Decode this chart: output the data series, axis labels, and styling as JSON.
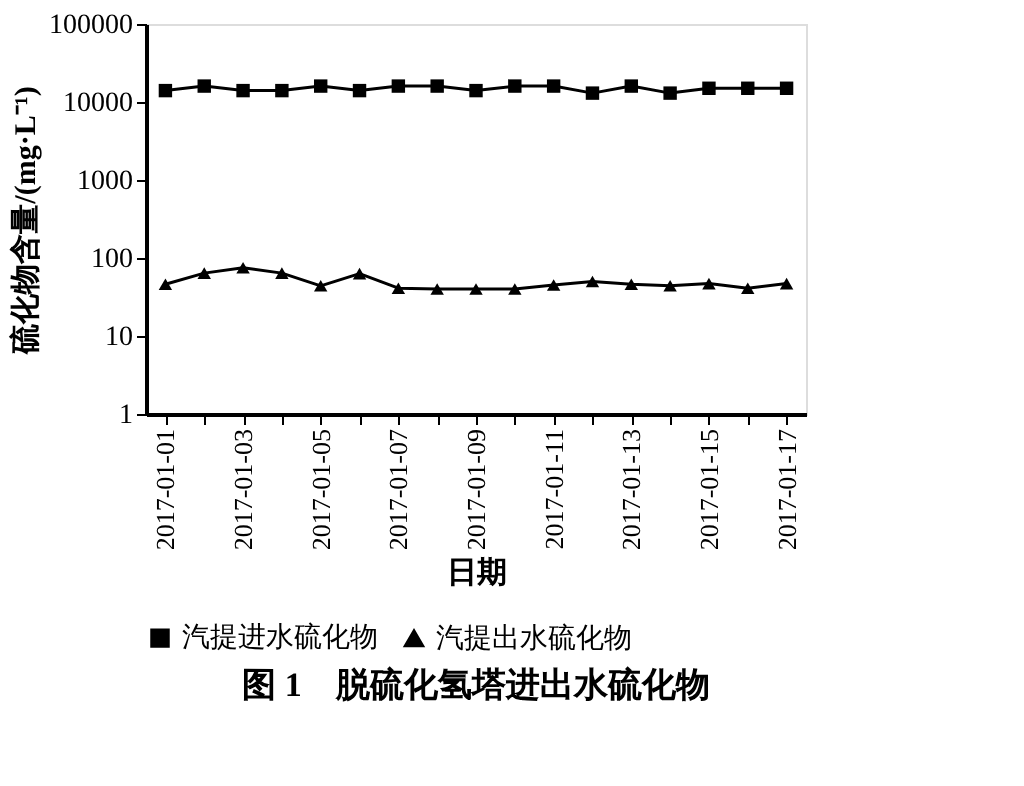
{
  "chart_data": {
    "type": "line",
    "title": "图 1　脱硫化氢塔进出水硫化物",
    "xlabel": "日期",
    "ylabel": "硫化物含量/(mg·L⁻¹)",
    "categories": [
      "2017-01-01",
      null,
      "2017-01-03",
      null,
      "2017-01-05",
      null,
      "2017-01-07",
      null,
      "2017-01-09",
      null,
      "2017-01-11",
      null,
      "2017-01-13",
      null,
      "2017-01-15",
      null,
      "2017-01-17"
    ],
    "series": [
      {
        "name": "汽提进水硫化物",
        "color": "#000000",
        "marker": "square",
        "values": [
          14000,
          16000,
          14000,
          14000,
          16000,
          14000,
          16000,
          16000,
          14000,
          16000,
          16000,
          13000,
          16000,
          13000,
          15000,
          15000,
          15000
        ]
      },
      {
        "name": "汽提出水硫化物",
        "color": "#000000",
        "marker": "triangle",
        "values": [
          46,
          64,
          75,
          64,
          44,
          63,
          41,
          40,
          40,
          40,
          45,
          50,
          46,
          44,
          47,
          41,
          47
        ]
      }
    ],
    "log": true,
    "ylim": [
      1,
      100000
    ],
    "yticks": [
      1,
      10,
      100,
      1000,
      10000,
      100000
    ],
    "grid": false,
    "legend": "bottom"
  }
}
